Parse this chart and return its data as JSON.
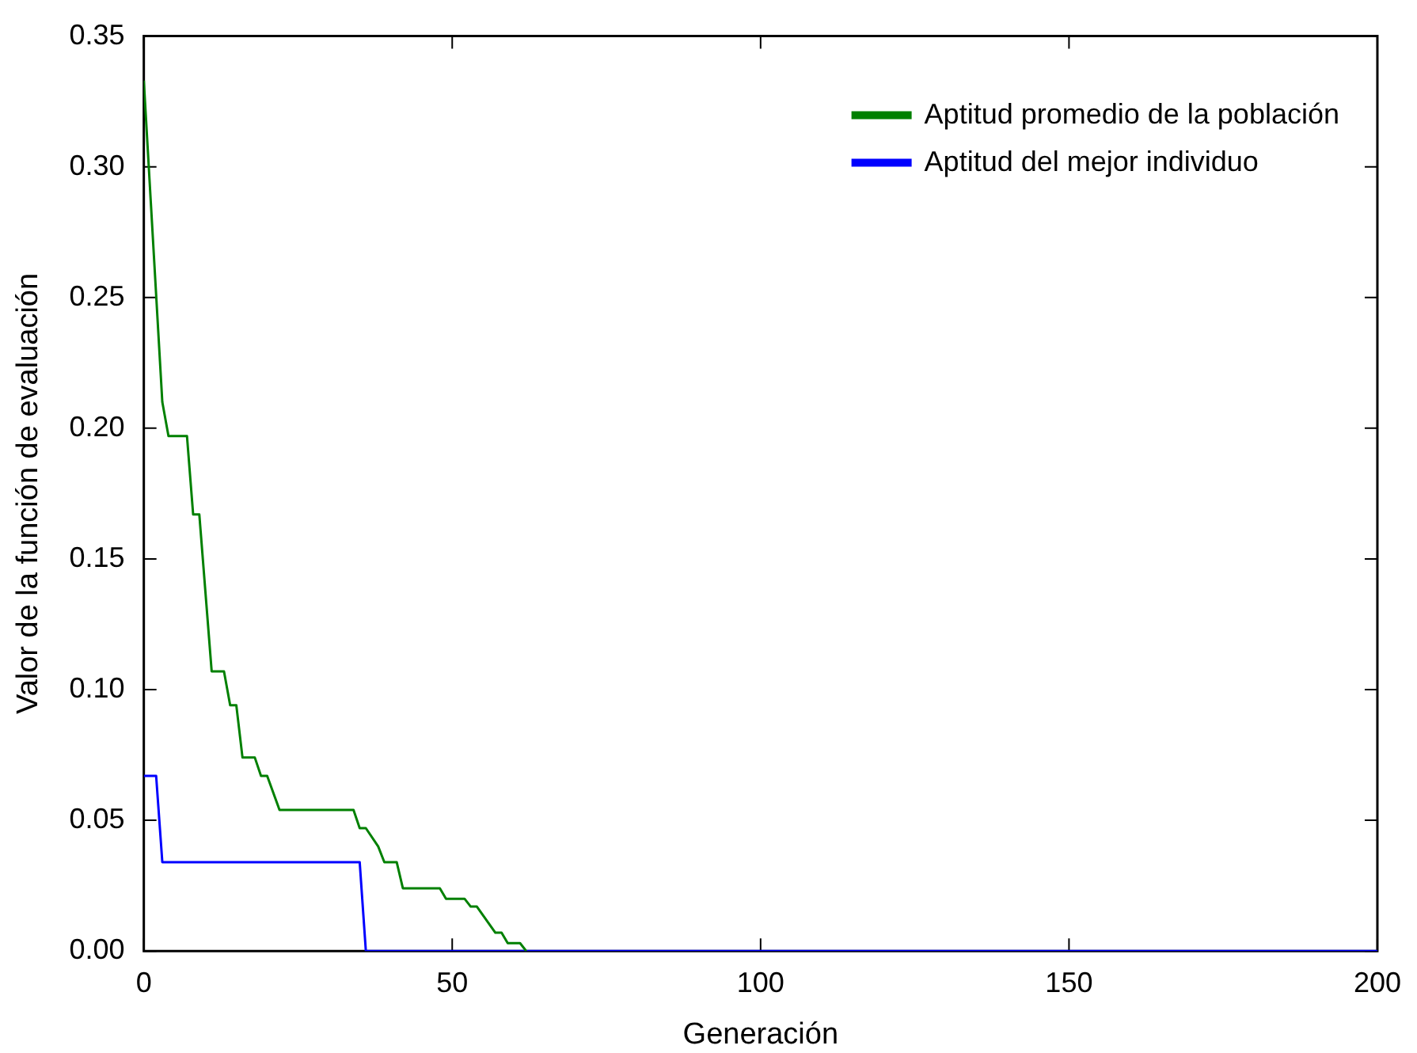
{
  "chart_data": {
    "type": "line",
    "xlabel": "Generación",
    "ylabel": "Valor de la función de evaluación",
    "xlim": [
      0,
      200
    ],
    "xticks": [
      0,
      50,
      100,
      150,
      200
    ],
    "ylim": [
      0,
      0.35
    ],
    "yticks": [
      {
        "value": 0,
        "label": "0.00"
      },
      0.05,
      {
        "value": 0.1,
        "label": "0.10"
      },
      0.15,
      {
        "value": 0.2,
        "label": "0.20"
      },
      0.25,
      {
        "value": 0.3,
        "label": "0.30"
      },
      0.35
    ],
    "grid": false,
    "legend": "top right",
    "marker": "none",
    "line_style": "solid",
    "series": [
      {
        "name": "Aptitud promedio de la población",
        "color": "#008000",
        "x": [
          0,
          3,
          4,
          7,
          8,
          9,
          11,
          13,
          14,
          15,
          16,
          18,
          19,
          20,
          22,
          34,
          35,
          36,
          38,
          39,
          41,
          42,
          48,
          49,
          52,
          53,
          54,
          57,
          58,
          59,
          61,
          62
        ],
        "values": [
          0.333,
          0.21,
          0.197,
          0.197,
          0.167,
          0.167,
          0.107,
          0.107,
          0.094,
          0.094,
          0.074,
          0.074,
          0.067,
          0.067,
          0.054,
          0.054,
          0.047,
          0.047,
          0.04,
          0.034,
          0.034,
          0.024,
          0.024,
          0.02,
          0.02,
          0.017,
          0.017,
          0.007,
          0.007,
          0.003,
          0.003,
          0
        ]
      },
      {
        "name": "Aptitud del mejor individuo",
        "color": "#0000ff",
        "x": [
          0,
          2,
          3,
          35,
          36,
          200
        ],
        "values": [
          0.067,
          0.067,
          0.034,
          0.034,
          0,
          0
        ]
      }
    ]
  }
}
